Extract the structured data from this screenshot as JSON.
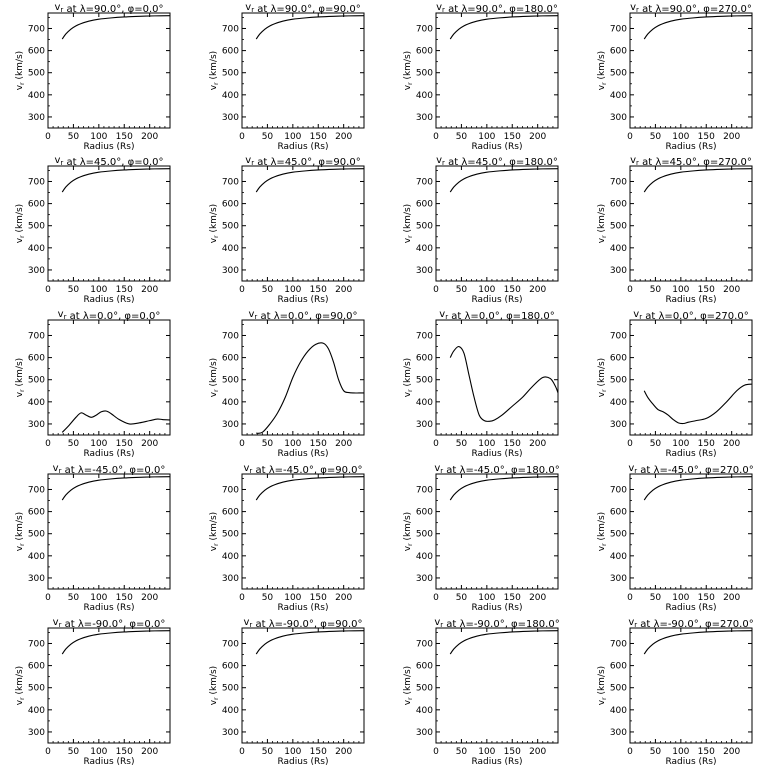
{
  "figure": {
    "background": "#ffffff",
    "line_color": "#000000"
  },
  "common": {
    "xlabel": "Radius (Rs)",
    "ylabel": "v_r (km/s)",
    "xlim": [
      0,
      240
    ],
    "ylim": [
      250,
      770
    ],
    "xticks": [
      0,
      50,
      100,
      150,
      200
    ],
    "yticks": [
      300,
      400,
      500,
      600,
      700
    ]
  },
  "chart_data": [
    {
      "type": "line",
      "title_lambda": "90.0",
      "title_phi": "0.0",
      "x": [
        28,
        35,
        45,
        55,
        65,
        80,
        100,
        125,
        150,
        180,
        210,
        240
      ],
      "y": [
        652,
        675,
        697,
        712,
        722,
        733,
        742,
        748,
        752,
        755,
        757,
        758
      ]
    },
    {
      "type": "line",
      "title_lambda": "90.0",
      "title_phi": "90.0",
      "x": [
        28,
        35,
        45,
        55,
        65,
        80,
        100,
        125,
        150,
        180,
        210,
        240
      ],
      "y": [
        652,
        675,
        697,
        712,
        722,
        733,
        742,
        748,
        752,
        755,
        757,
        758
      ]
    },
    {
      "type": "line",
      "title_lambda": "90.0",
      "title_phi": "180.0",
      "x": [
        28,
        35,
        45,
        55,
        65,
        80,
        100,
        125,
        150,
        180,
        210,
        240
      ],
      "y": [
        652,
        675,
        697,
        712,
        722,
        733,
        742,
        748,
        752,
        755,
        757,
        758
      ]
    },
    {
      "type": "line",
      "title_lambda": "90.0",
      "title_phi": "270.0",
      "x": [
        28,
        35,
        45,
        55,
        65,
        80,
        100,
        125,
        150,
        180,
        210,
        240
      ],
      "y": [
        652,
        675,
        697,
        712,
        722,
        733,
        742,
        748,
        752,
        755,
        757,
        758
      ]
    },
    {
      "type": "line",
      "title_lambda": "45.0",
      "title_phi": "0.0",
      "x": [
        28,
        35,
        45,
        55,
        65,
        80,
        100,
        125,
        150,
        180,
        210,
        240
      ],
      "y": [
        652,
        675,
        697,
        712,
        722,
        733,
        742,
        748,
        752,
        755,
        757,
        758
      ]
    },
    {
      "type": "line",
      "title_lambda": "45.0",
      "title_phi": "90.0",
      "x": [
        28,
        35,
        45,
        55,
        65,
        80,
        100,
        125,
        150,
        180,
        210,
        240
      ],
      "y": [
        652,
        675,
        697,
        712,
        722,
        733,
        742,
        748,
        752,
        755,
        757,
        758
      ]
    },
    {
      "type": "line",
      "title_lambda": "45.0",
      "title_phi": "180.0",
      "x": [
        28,
        35,
        45,
        55,
        65,
        80,
        100,
        125,
        150,
        180,
        210,
        240
      ],
      "y": [
        652,
        675,
        697,
        712,
        722,
        733,
        742,
        748,
        752,
        755,
        757,
        758
      ]
    },
    {
      "type": "line",
      "title_lambda": "45.0",
      "title_phi": "270.0",
      "x": [
        28,
        35,
        45,
        55,
        65,
        80,
        100,
        125,
        150,
        180,
        210,
        240
      ],
      "y": [
        652,
        675,
        697,
        712,
        722,
        733,
        742,
        748,
        752,
        755,
        757,
        758
      ]
    },
    {
      "type": "line",
      "title_lambda": "0.0",
      "title_phi": "0.0",
      "x": [
        28,
        40,
        55,
        65,
        75,
        85,
        95,
        105,
        115,
        125,
        140,
        160,
        180,
        200,
        215,
        225,
        240
      ],
      "y": [
        262,
        290,
        330,
        350,
        340,
        330,
        340,
        355,
        358,
        345,
        320,
        300,
        305,
        315,
        322,
        320,
        318
      ]
    },
    {
      "type": "line",
      "title_lambda": "0.0",
      "title_phi": "90.0",
      "x": [
        28,
        40,
        55,
        70,
        85,
        100,
        115,
        130,
        145,
        160,
        170,
        180,
        190,
        200,
        210,
        220,
        230,
        240
      ],
      "y": [
        258,
        262,
        300,
        350,
        420,
        510,
        580,
        630,
        660,
        665,
        640,
        580,
        500,
        450,
        442,
        440,
        440,
        440
      ]
    },
    {
      "type": "line",
      "title_lambda": "0.0",
      "title_phi": "180.0",
      "x": [
        28,
        35,
        45,
        55,
        65,
        75,
        85,
        95,
        105,
        115,
        130,
        150,
        170,
        190,
        210,
        225,
        235,
        240
      ],
      "y": [
        600,
        630,
        650,
        620,
        520,
        420,
        340,
        315,
        312,
        318,
        340,
        380,
        420,
        470,
        510,
        505,
        470,
        440
      ]
    },
    {
      "type": "line",
      "title_lambda": "0.0",
      "title_phi": "270.0",
      "x": [
        28,
        35,
        45,
        55,
        65,
        75,
        85,
        95,
        105,
        115,
        130,
        150,
        170,
        190,
        210,
        225,
        240
      ],
      "y": [
        450,
        420,
        390,
        365,
        355,
        340,
        320,
        305,
        302,
        308,
        315,
        325,
        355,
        400,
        450,
        475,
        480
      ]
    },
    {
      "type": "line",
      "title_lambda": "-45.0",
      "title_phi": "0.0",
      "x": [
        28,
        35,
        45,
        55,
        65,
        80,
        100,
        125,
        150,
        180,
        210,
        240
      ],
      "y": [
        652,
        675,
        697,
        712,
        722,
        733,
        742,
        748,
        752,
        755,
        757,
        758
      ]
    },
    {
      "type": "line",
      "title_lambda": "-45.0",
      "title_phi": "90.0",
      "x": [
        28,
        35,
        45,
        55,
        65,
        80,
        100,
        125,
        150,
        180,
        210,
        240
      ],
      "y": [
        652,
        675,
        697,
        712,
        722,
        733,
        742,
        748,
        752,
        755,
        757,
        758
      ]
    },
    {
      "type": "line",
      "title_lambda": "-45.0",
      "title_phi": "180.0",
      "x": [
        28,
        35,
        45,
        55,
        65,
        80,
        100,
        125,
        150,
        180,
        210,
        240
      ],
      "y": [
        652,
        675,
        697,
        712,
        722,
        733,
        742,
        748,
        752,
        755,
        757,
        758
      ]
    },
    {
      "type": "line",
      "title_lambda": "-45.0",
      "title_phi": "270.0",
      "x": [
        28,
        35,
        45,
        55,
        65,
        80,
        100,
        125,
        150,
        180,
        210,
        240
      ],
      "y": [
        652,
        675,
        697,
        712,
        722,
        733,
        742,
        748,
        752,
        755,
        757,
        758
      ]
    },
    {
      "type": "line",
      "title_lambda": "-90.0",
      "title_phi": "0.0",
      "x": [
        28,
        35,
        45,
        55,
        65,
        80,
        100,
        125,
        150,
        180,
        210,
        240
      ],
      "y": [
        652,
        675,
        697,
        712,
        722,
        733,
        742,
        748,
        752,
        755,
        757,
        758
      ]
    },
    {
      "type": "line",
      "title_lambda": "-90.0",
      "title_phi": "90.0",
      "x": [
        28,
        35,
        45,
        55,
        65,
        80,
        100,
        125,
        150,
        180,
        210,
        240
      ],
      "y": [
        652,
        675,
        697,
        712,
        722,
        733,
        742,
        748,
        752,
        755,
        757,
        758
      ]
    },
    {
      "type": "line",
      "title_lambda": "-90.0",
      "title_phi": "180.0",
      "x": [
        28,
        35,
        45,
        55,
        65,
        80,
        100,
        125,
        150,
        180,
        210,
        240
      ],
      "y": [
        652,
        675,
        697,
        712,
        722,
        733,
        742,
        748,
        752,
        755,
        757,
        758
      ]
    },
    {
      "type": "line",
      "title_lambda": "-90.0",
      "title_phi": "270.0",
      "x": [
        28,
        35,
        45,
        55,
        65,
        80,
        100,
        125,
        150,
        180,
        210,
        240
      ],
      "y": [
        652,
        675,
        697,
        712,
        722,
        733,
        742,
        748,
        752,
        755,
        757,
        758
      ]
    }
  ]
}
